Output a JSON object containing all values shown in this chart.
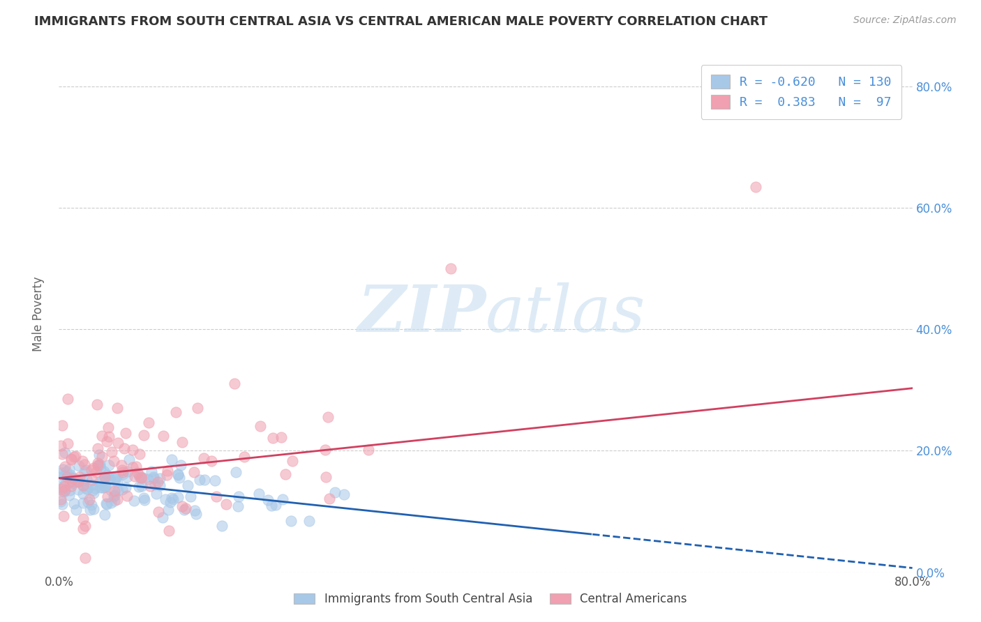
{
  "title": "IMMIGRANTS FROM SOUTH CENTRAL ASIA VS CENTRAL AMERICAN MALE POVERTY CORRELATION CHART",
  "source": "Source: ZipAtlas.com",
  "ylabel": "Male Poverty",
  "xlim": [
    0.0,
    0.8
  ],
  "ylim": [
    0.0,
    0.85
  ],
  "y_ticks_right": [
    0.0,
    0.2,
    0.4,
    0.6,
    0.8
  ],
  "y_tick_labels_right": [
    "0.0%",
    "20.0%",
    "40.0%",
    "60.0%",
    "80.0%"
  ],
  "R_blue": -0.62,
  "N_blue": 130,
  "R_pink": 0.383,
  "N_pink": 97,
  "blue_color": "#a8c8e8",
  "pink_color": "#f0a0b0",
  "blue_line_color": "#2060b0",
  "pink_line_color": "#d04060",
  "legend_label_blue": "Immigrants from South Central Asia",
  "legend_label_pink": "Central Americans",
  "background_color": "#ffffff",
  "grid_color": "#cccccc",
  "title_color": "#333333",
  "right_axis_color": "#4a90d9"
}
